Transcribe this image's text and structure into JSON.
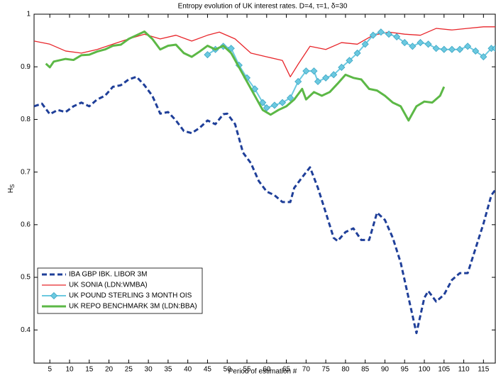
{
  "chart_data": {
    "type": "line",
    "title": "Entropy evolution of UK interest rates. D=4, τ=1, δ=30",
    "xlabel": "Period of estimation #",
    "ylabel": "H",
    "ylabel_sub": "S",
    "xlim": [
      1,
      118
    ],
    "ylim": [
      0.337,
      1
    ],
    "xticks": [
      5,
      10,
      15,
      20,
      25,
      30,
      35,
      40,
      45,
      50,
      55,
      60,
      65,
      70,
      75,
      80,
      85,
      90,
      95,
      100,
      105,
      110,
      115
    ],
    "yticks": [
      0.4,
      0.5,
      0.6,
      0.7,
      0.8,
      0.9,
      1
    ],
    "legend": "lower left",
    "series": [
      {
        "name": "IBA GBP IBK. LIBOR 3M",
        "color": "#1f3f99",
        "style": "dashed",
        "x": [
          1,
          3,
          5,
          7,
          9,
          11,
          13,
          15,
          17,
          19,
          21,
          23,
          25,
          27,
          29,
          31,
          33,
          35,
          37,
          39,
          41,
          43,
          45,
          47,
          49,
          50,
          52,
          54,
          56,
          58,
          60,
          62,
          64,
          66,
          67,
          69,
          71,
          73,
          75,
          77,
          78,
          80,
          82,
          84,
          86,
          88,
          90,
          92,
          94,
          96,
          98,
          100,
          101,
          103,
          105,
          107,
          109,
          111,
          113,
          115,
          117,
          118
        ],
        "values": [
          0.825,
          0.83,
          0.81,
          0.818,
          0.814,
          0.825,
          0.832,
          0.825,
          0.838,
          0.845,
          0.862,
          0.865,
          0.876,
          0.881,
          0.865,
          0.845,
          0.811,
          0.814,
          0.798,
          0.778,
          0.774,
          0.784,
          0.798,
          0.791,
          0.81,
          0.811,
          0.791,
          0.737,
          0.717,
          0.683,
          0.663,
          0.656,
          0.643,
          0.643,
          0.67,
          0.69,
          0.709,
          0.67,
          0.623,
          0.575,
          0.569,
          0.586,
          0.593,
          0.571,
          0.571,
          0.623,
          0.609,
          0.575,
          0.528,
          0.461,
          0.394,
          0.461,
          0.474,
          0.454,
          0.467,
          0.495,
          0.508,
          0.508,
          0.555,
          0.602,
          0.656,
          0.666
        ]
      },
      {
        "name": "UK SONIA (LDN:WMBA)",
        "color": "#e8262b",
        "style": "solid",
        "x": [
          1,
          5,
          9,
          13,
          17,
          21,
          25,
          29,
          33,
          37,
          41,
          45,
          48,
          52,
          56,
          60,
          64,
          66,
          68,
          71,
          75,
          79,
          83,
          87,
          91,
          95,
          99,
          103,
          107,
          111,
          115,
          118
        ],
        "values": [
          0.949,
          0.943,
          0.93,
          0.926,
          0.933,
          0.943,
          0.953,
          0.962,
          0.953,
          0.96,
          0.949,
          0.96,
          0.966,
          0.953,
          0.926,
          0.919,
          0.912,
          0.881,
          0.905,
          0.939,
          0.933,
          0.946,
          0.943,
          0.96,
          0.966,
          0.962,
          0.96,
          0.973,
          0.97,
          0.973,
          0.976,
          0.976
        ]
      },
      {
        "name": "UK POUND STERLING 3 MONTH OIS",
        "color": "#6cc9e0",
        "style": "marker",
        "x": [
          45,
          47,
          49,
          51,
          53,
          55,
          57,
          59,
          60,
          62,
          64,
          66,
          68,
          70,
          72,
          73,
          75,
          77,
          79,
          81,
          83,
          85,
          87,
          89,
          91,
          93,
          95,
          97,
          99,
          101,
          103,
          105,
          107,
          109,
          111,
          113,
          115,
          117,
          118
        ],
        "values": [
          0.923,
          0.933,
          0.939,
          0.935,
          0.903,
          0.879,
          0.858,
          0.832,
          0.822,
          0.827,
          0.832,
          0.841,
          0.872,
          0.892,
          0.892,
          0.872,
          0.879,
          0.885,
          0.899,
          0.912,
          0.926,
          0.943,
          0.96,
          0.966,
          0.962,
          0.957,
          0.946,
          0.939,
          0.946,
          0.943,
          0.935,
          0.933,
          0.933,
          0.933,
          0.939,
          0.93,
          0.919,
          0.935,
          0.935
        ]
      },
      {
        "name": "UK REPO BENCHMARK 3M (LDN:BBA)",
        "color": "#5cb846",
        "style": "thick",
        "x": [
          4,
          5,
          6,
          9,
          11,
          13,
          15,
          17,
          19,
          21,
          23,
          25,
          27,
          29,
          31,
          33,
          35,
          37,
          39,
          41,
          43,
          45,
          47,
          49,
          51,
          53,
          55,
          57,
          59,
          61,
          63,
          65,
          67,
          69,
          70,
          72,
          74,
          76,
          78,
          80,
          82,
          84,
          86,
          88,
          90,
          92,
          94,
          96,
          98,
          100,
          102,
          104,
          105
        ],
        "values": [
          0.906,
          0.899,
          0.91,
          0.915,
          0.913,
          0.922,
          0.923,
          0.929,
          0.933,
          0.94,
          0.942,
          0.953,
          0.96,
          0.967,
          0.953,
          0.933,
          0.94,
          0.942,
          0.926,
          0.919,
          0.929,
          0.94,
          0.933,
          0.94,
          0.926,
          0.899,
          0.872,
          0.845,
          0.818,
          0.809,
          0.818,
          0.825,
          0.838,
          0.858,
          0.838,
          0.852,
          0.845,
          0.852,
          0.868,
          0.885,
          0.879,
          0.876,
          0.858,
          0.855,
          0.845,
          0.832,
          0.825,
          0.798,
          0.825,
          0.834,
          0.832,
          0.845,
          0.862
        ]
      }
    ]
  }
}
